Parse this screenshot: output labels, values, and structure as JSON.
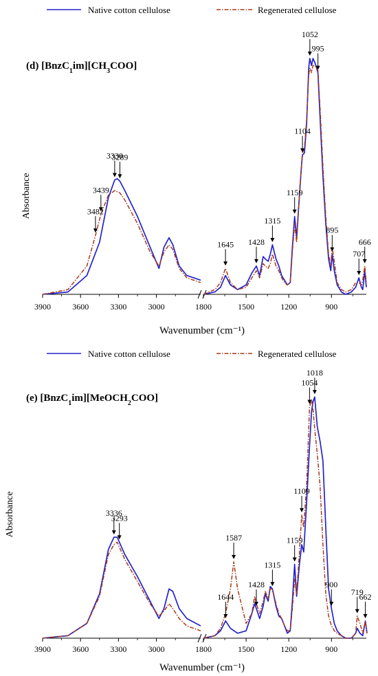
{
  "chart_data": [
    {
      "type": "line",
      "title": "(d) [BnzC1im][CH3COO]",
      "title_parts": [
        "(d) [BnzC",
        "1",
        "im][CH",
        "3",
        "COO]"
      ],
      "xlabel": "Wavenumber (cm⁻¹)",
      "ylabel": "Absorbance",
      "x_ticks": [
        "3900",
        "3600",
        "3300",
        "3000",
        "1800",
        "1500",
        "1200",
        "900"
      ],
      "x_break": "between 2600 and 1800",
      "grid": false,
      "legend_position": "top",
      "colors": {
        "native": "#2222cc",
        "regenerated": "#a63a1a"
      },
      "series": [
        {
          "name": "Native cotton cellulose",
          "style": "solid",
          "x": [
            3900,
            3700,
            3550,
            3450,
            3380,
            3330,
            3310,
            3289,
            3250,
            3150,
            3050,
            2980,
            2940,
            2900,
            2870,
            2820,
            2760,
            2650,
            1800,
            1720,
            1680,
            1645,
            1610,
            1560,
            1500,
            1460,
            1428,
            1405,
            1380,
            1365,
            1345,
            1330,
            1315,
            1290,
            1270,
            1250,
            1230,
            1210,
            1190,
            1175,
            1159,
            1145,
            1125,
            1110,
            1104,
            1090,
            1075,
            1060,
            1052,
            1040,
            1030,
            1015,
            995,
            980,
            960,
            940,
            920,
            905,
            895,
            880,
            860,
            830,
            800,
            760,
            730,
            707,
            690,
            680,
            666,
            655
          ],
          "y": [
            0,
            0.01,
            0.08,
            0.22,
            0.41,
            0.485,
            0.49,
            0.48,
            0.44,
            0.33,
            0.2,
            0.11,
            0.2,
            0.24,
            0.21,
            0.12,
            0.08,
            0.06,
            0,
            0.01,
            0.03,
            0.08,
            0.04,
            0.02,
            0.04,
            0.09,
            0.12,
            0.08,
            0.16,
            0.15,
            0.14,
            0.17,
            0.21,
            0.15,
            0.12,
            0.08,
            0.06,
            0.04,
            0.05,
            0.2,
            0.33,
            0.24,
            0.42,
            0.55,
            0.59,
            0.6,
            0.72,
            0.96,
            1.0,
            0.97,
            1.0,
            0.98,
            0.94,
            0.75,
            0.5,
            0.3,
            0.15,
            0.1,
            0.17,
            0.1,
            0.04,
            0.01,
            0.0,
            0.01,
            0.03,
            0.07,
            0.03,
            0.02,
            0.1,
            0.03
          ]
        },
        {
          "name": "Regenerated cellulose",
          "style": "dash-dot",
          "x": [
            3900,
            3700,
            3550,
            3482,
            3439,
            3380,
            3330,
            3289,
            3250,
            3150,
            3050,
            2980,
            2940,
            2900,
            2870,
            2820,
            2760,
            2650,
            1800,
            1720,
            1680,
            1645,
            1610,
            1560,
            1500,
            1460,
            1428,
            1405,
            1380,
            1365,
            1345,
            1330,
            1315,
            1290,
            1270,
            1250,
            1230,
            1210,
            1190,
            1175,
            1159,
            1145,
            1125,
            1110,
            1104,
            1090,
            1075,
            1060,
            1052,
            1040,
            1030,
            1015,
            995,
            980,
            960,
            940,
            920,
            905,
            895,
            880,
            860,
            830,
            800,
            760,
            730,
            707,
            690,
            680,
            666,
            655
          ],
          "y": [
            0,
            0.02,
            0.12,
            0.25,
            0.34,
            0.42,
            0.44,
            0.43,
            0.4,
            0.3,
            0.18,
            0.12,
            0.18,
            0.21,
            0.19,
            0.11,
            0.07,
            0.05,
            0,
            0.02,
            0.05,
            0.11,
            0.05,
            0.02,
            0.03,
            0.07,
            0.1,
            0.07,
            0.13,
            0.12,
            0.11,
            0.13,
            0.17,
            0.12,
            0.1,
            0.07,
            0.05,
            0.04,
            0.05,
            0.18,
            0.3,
            0.22,
            0.42,
            0.55,
            0.6,
            0.62,
            0.74,
            0.93,
            0.96,
            0.94,
            0.97,
            0.97,
            0.95,
            0.79,
            0.54,
            0.33,
            0.17,
            0.12,
            0.2,
            0.14,
            0.05,
            0.02,
            0.01,
            0.02,
            0.05,
            0.05,
            0.04,
            0.06,
            0.12,
            0.05
          ]
        }
      ],
      "annotations": [
        {
          "label": "3482",
          "x": 3482,
          "series": 1
        },
        {
          "label": "3439",
          "x": 3439,
          "series": 1
        },
        {
          "label": "3330",
          "x": 3330,
          "series": 0
        },
        {
          "label": "3289",
          "x": 3289,
          "series": 0
        },
        {
          "label": "1645",
          "x": 1645,
          "series": 1
        },
        {
          "label": "1428",
          "x": 1428,
          "series": 0
        },
        {
          "label": "1315",
          "x": 1315,
          "series": 0
        },
        {
          "label": "1159",
          "x": 1159,
          "series": 0
        },
        {
          "label": "1104",
          "x": 1104,
          "series": 0
        },
        {
          "label": "1052",
          "x": 1052,
          "series": 0
        },
        {
          "label": "995",
          "x": 995,
          "series": 0
        },
        {
          "label": "895",
          "x": 895,
          "series": 0
        },
        {
          "label": "707",
          "x": 707,
          "series": 0
        },
        {
          "label": "666",
          "x": 666,
          "series": 1
        }
      ]
    },
    {
      "type": "line",
      "title": "(e) [BnzC1im][MeOCH2COO]",
      "title_parts": [
        "(e) [BnzC",
        "1",
        "im][MeOCH",
        "2",
        "COO]"
      ],
      "xlabel": "Wavenumber (cm⁻¹)",
      "ylabel": "Absorbance",
      "x_ticks": [
        "3900",
        "3600",
        "3300",
        "3000",
        "1800",
        "1500",
        "1200",
        "900"
      ],
      "x_break": "between 2600 and 1800",
      "grid": false,
      "legend_position": "top",
      "colors": {
        "native": "#2222cc",
        "regenerated": "#a63a1a"
      },
      "series": [
        {
          "name": "Native cotton cellulose",
          "style": "solid",
          "x": [
            3900,
            3700,
            3550,
            3450,
            3380,
            3336,
            3310,
            3293,
            3250,
            3150,
            3050,
            2980,
            2940,
            2900,
            2870,
            2820,
            2760,
            2650,
            1800,
            1720,
            1680,
            1644,
            1610,
            1560,
            1500,
            1460,
            1440,
            1428,
            1405,
            1380,
            1365,
            1345,
            1330,
            1315,
            1290,
            1270,
            1250,
            1230,
            1210,
            1190,
            1175,
            1159,
            1145,
            1125,
            1109,
            1095,
            1075,
            1054,
            1040,
            1030,
            1018,
            1000,
            980,
            960,
            940,
            920,
            900,
            880,
            860,
            830,
            800,
            760,
            730,
            719,
            700,
            680,
            662,
            650
          ],
          "y": [
            0,
            0.01,
            0.06,
            0.18,
            0.36,
            0.41,
            0.41,
            0.39,
            0.34,
            0.25,
            0.15,
            0.08,
            0.12,
            0.2,
            0.19,
            0.12,
            0.08,
            0.05,
            0,
            0.01,
            0.03,
            0.07,
            0.04,
            0.02,
            0.03,
            0.1,
            0.14,
            0.12,
            0.08,
            0.13,
            0.18,
            0.15,
            0.21,
            0.2,
            0.13,
            0.09,
            0.08,
            0.05,
            0.02,
            0.03,
            0.15,
            0.3,
            0.17,
            0.3,
            0.38,
            0.35,
            0.55,
            0.78,
            0.92,
            0.96,
            0.98,
            0.86,
            0.8,
            0.72,
            0.45,
            0.2,
            0.12,
            0.06,
            0.03,
            0.01,
            0,
            0,
            0.02,
            0.04,
            0.02,
            0.01,
            0.07,
            0.02
          ]
        },
        {
          "name": "Regenerated cellulose",
          "style": "dash-dot",
          "x": [
            3900,
            3700,
            3550,
            3450,
            3380,
            3336,
            3310,
            3293,
            3250,
            3150,
            3050,
            2980,
            2940,
            2900,
            2870,
            2820,
            2760,
            2650,
            1800,
            1720,
            1680,
            1644,
            1610,
            1587,
            1560,
            1500,
            1460,
            1440,
            1428,
            1405,
            1380,
            1365,
            1345,
            1330,
            1315,
            1290,
            1270,
            1250,
            1230,
            1210,
            1190,
            1175,
            1159,
            1145,
            1125,
            1109,
            1095,
            1075,
            1054,
            1040,
            1030,
            1018,
            1000,
            980,
            960,
            940,
            920,
            900,
            880,
            860,
            830,
            800,
            760,
            730,
            719,
            700,
            680,
            662,
            650
          ],
          "y": [
            0,
            0.01,
            0.06,
            0.17,
            0.34,
            0.38,
            0.39,
            0.37,
            0.32,
            0.23,
            0.14,
            0.09,
            0.11,
            0.14,
            0.12,
            0.08,
            0.05,
            0.03,
            0,
            0.01,
            0.04,
            0.1,
            0.2,
            0.31,
            0.2,
            0.06,
            0.1,
            0.17,
            0.14,
            0.1,
            0.15,
            0.19,
            0.16,
            0.2,
            0.2,
            0.14,
            0.1,
            0.08,
            0.05,
            0.03,
            0.03,
            0.12,
            0.24,
            0.18,
            0.35,
            0.5,
            0.45,
            0.62,
            0.94,
            0.97,
            0.93,
            0.85,
            0.75,
            0.62,
            0.38,
            0.18,
            0.09,
            0.05,
            0.03,
            0.02,
            0.01,
            0.0,
            0.0,
            0.02,
            0.09,
            0.06,
            0.02,
            0.07,
            0.02
          ]
        }
      ],
      "annotations": [
        {
          "label": "3336",
          "x": 3336,
          "series": 0
        },
        {
          "label": "3293",
          "x": 3293,
          "series": 0
        },
        {
          "label": "1644",
          "x": 1644,
          "series": 0
        },
        {
          "label": "1587",
          "x": 1587,
          "series": 1
        },
        {
          "label": "1428",
          "x": 1428,
          "series": 0
        },
        {
          "label": "1315",
          "x": 1315,
          "series": 0
        },
        {
          "label": "1159",
          "x": 1159,
          "series": 0
        },
        {
          "label": "1109",
          "x": 1109,
          "series": 1
        },
        {
          "label": "1054",
          "x": 1054,
          "series": 1
        },
        {
          "label": "1018",
          "x": 1018,
          "series": 0
        },
        {
          "label": "900",
          "x": 900,
          "series": 0
        },
        {
          "label": "719",
          "x": 719,
          "series": 1
        },
        {
          "label": "662",
          "x": 662,
          "series": 1
        }
      ]
    }
  ]
}
